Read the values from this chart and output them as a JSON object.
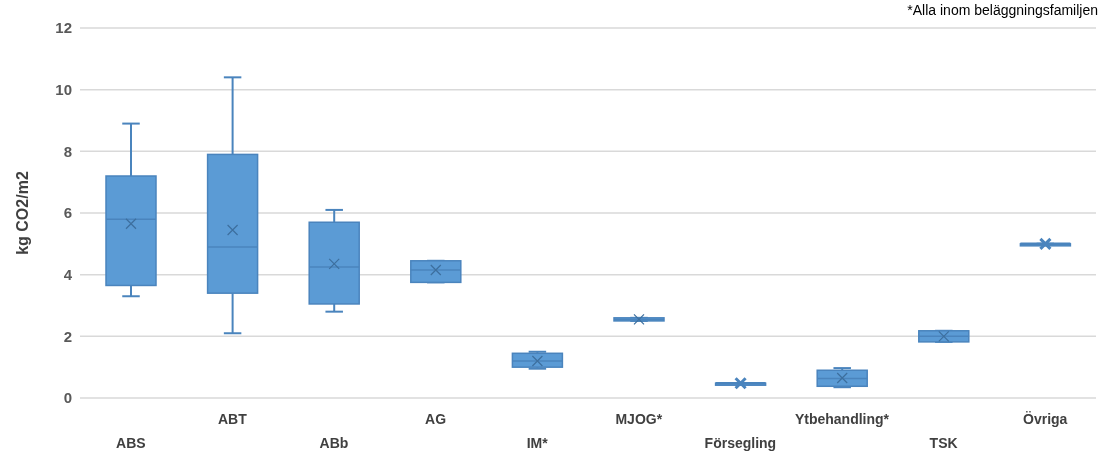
{
  "chart_data": {
    "type": "box",
    "ylabel": "kg CO2/m2",
    "annotations": [
      "*Alla inom beläggningsfamiljen"
    ],
    "categories": [
      "ABS",
      "ABT",
      "ABb",
      "AG",
      "IM*",
      "MJOG*",
      "Försegling",
      "Ytbehandling*",
      "TSK",
      "Övriga"
    ],
    "color": "#5b9bd5",
    "ylim": [
      0,
      12
    ],
    "yticks": [
      0,
      2,
      4,
      6,
      8,
      10,
      12
    ],
    "grid": "y",
    "boxes": [
      {
        "low": 3.3,
        "q1": 3.65,
        "median": 5.8,
        "q3": 7.2,
        "high": 8.9,
        "mean": 5.65
      },
      {
        "low": 2.1,
        "q1": 3.4,
        "median": 4.9,
        "q3": 7.9,
        "high": 10.4,
        "mean": 5.45
      },
      {
        "low": 2.8,
        "q1": 3.05,
        "median": 4.25,
        "q3": 5.7,
        "high": 6.1,
        "mean": 4.35
      },
      {
        "low": 3.75,
        "q1": 3.75,
        "median": 4.15,
        "q3": 4.45,
        "high": 4.45,
        "mean": 4.15
      },
      {
        "low": 0.95,
        "q1": 1.0,
        "median": 1.2,
        "q3": 1.45,
        "high": 1.5,
        "mean": 1.2
      },
      {
        "low": 2.5,
        "q1": 2.5,
        "median": 2.55,
        "q3": 2.6,
        "high": 2.6,
        "mean": 2.55
      },
      {
        "low": 0.48,
        "q1": 0.48,
        "median": 0.48,
        "q3": 0.48,
        "high": 0.48,
        "mean": 0.48
      },
      {
        "low": 0.35,
        "q1": 0.38,
        "median": 0.63,
        "q3": 0.9,
        "high": 0.97,
        "mean": 0.65
      },
      {
        "low": 1.82,
        "q1": 1.82,
        "median": 2.0,
        "q3": 2.18,
        "high": 2.18,
        "mean": 2.0
      },
      {
        "low": 5.0,
        "q1": 5.0,
        "median": 5.0,
        "q3": 5.0,
        "high": 5.0,
        "mean": 5.0
      }
    ]
  }
}
